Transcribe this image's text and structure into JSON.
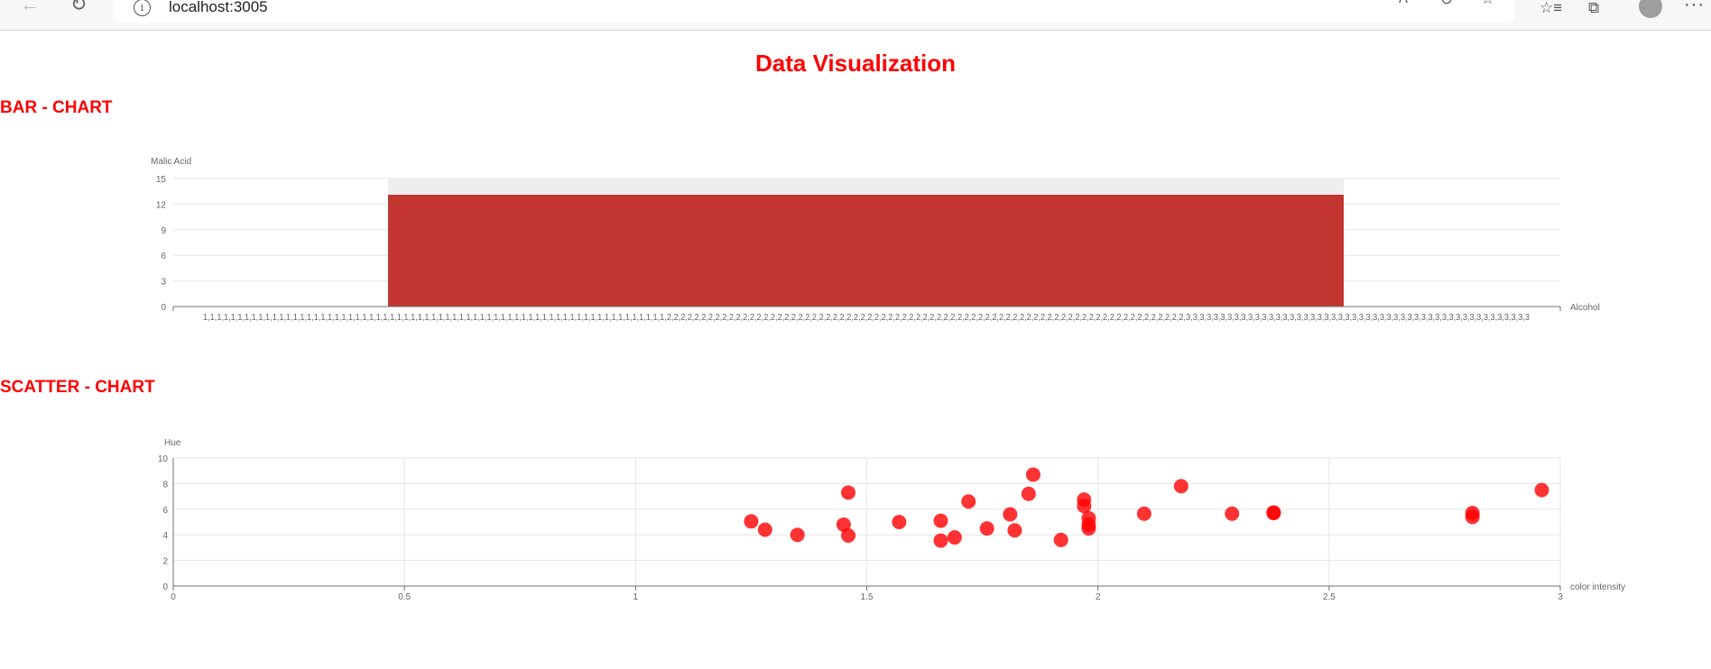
{
  "browser": {
    "url": "localhost:3005",
    "icons": [
      "back-arrow-icon",
      "refresh-icon",
      "info-icon",
      "read-aloud-icon",
      "zoom-out-icon",
      "favorite-add-icon",
      "favorites-icon",
      "collections-icon",
      "profile-avatar",
      "more-icon"
    ]
  },
  "page": {
    "title": "Data Visualization",
    "bar_section_title": "BAR - CHART",
    "scatter_section_title": "SCATTER - CHART"
  },
  "colors": {
    "accent": "#ff0000",
    "bar": "#c23531",
    "bar_bg": "#eeeeee",
    "scatter": "#ff0000"
  },
  "chart_data": [
    {
      "type": "bar",
      "title": "",
      "xlabel": "Alcohol",
      "ylabel": "Malic Acid",
      "ylim": [
        0,
        15
      ],
      "yticks": [
        0,
        3,
        6,
        9,
        12,
        15
      ],
      "category_sequence": "1,1,1,1,1,1,1,1,1,1,1,1,1,1,1,1,1,1,1,1,1,1,1,1,1,1,1,1,1,1,1,1,1,1,1,1,1,1,1,1,1,1,1,1,1,1,1,1,1,1,1,1,1,1,1,1,1,1,1,1,1,1,1,1,1,1,1,2,2,2,2,2,2,2,2,2,2,2,2,2,2,2,2,2,2,2,2,2,2,2,2,2,2,2,2,2,2,2,2,2,2,2,2,2,2,2,2,2,2,2,2,2,2,2,2,2,2,2,2,2,2,2,2,2,2,2,2,2,2,2,2,2,2,2,2,2,2,2,2,2,2,2,3,3,3,3,3,3,3,3,3,3,3,3,3,3,3,3,3,3,3,3,3,3,3,3,3,3,3,3,3,3,3,3,3,3,3,3,3,3,3,3,3,3,3,3,3,3,3,3,3,3",
      "categories": [
        "1",
        "2",
        "3"
      ],
      "values": [
        null,
        13.1,
        null
      ],
      "background_max": 15,
      "grid": true
    },
    {
      "type": "scatter",
      "title": "",
      "xlabel": "color intensity",
      "ylabel": "Hue",
      "xlim": [
        0,
        3
      ],
      "ylim": [
        0,
        10
      ],
      "xticks": [
        0,
        0.5,
        1,
        1.5,
        2,
        2.5,
        3
      ],
      "yticks": [
        0,
        2,
        4,
        6,
        8,
        10
      ],
      "grid": true,
      "points": [
        [
          1.25,
          5.05
        ],
        [
          1.28,
          4.4
        ],
        [
          1.35,
          4.0
        ],
        [
          1.45,
          4.8
        ],
        [
          1.46,
          7.3
        ],
        [
          1.46,
          3.95
        ],
        [
          1.57,
          5.0
        ],
        [
          1.66,
          5.1
        ],
        [
          1.66,
          3.55
        ],
        [
          1.69,
          3.8
        ],
        [
          1.72,
          6.6
        ],
        [
          1.76,
          4.5
        ],
        [
          1.81,
          5.6
        ],
        [
          1.82,
          4.35
        ],
        [
          1.85,
          7.2
        ],
        [
          1.86,
          8.7
        ],
        [
          1.92,
          3.6
        ],
        [
          1.97,
          6.75
        ],
        [
          1.97,
          6.25
        ],
        [
          1.98,
          5.3
        ],
        [
          1.98,
          4.8
        ],
        [
          1.98,
          4.5
        ],
        [
          2.1,
          5.65
        ],
        [
          2.18,
          7.8
        ],
        [
          2.29,
          5.65
        ],
        [
          2.38,
          5.75
        ],
        [
          2.38,
          5.7
        ],
        [
          2.81,
          5.7
        ],
        [
          2.81,
          5.4
        ],
        [
          2.96,
          7.5
        ]
      ]
    }
  ]
}
